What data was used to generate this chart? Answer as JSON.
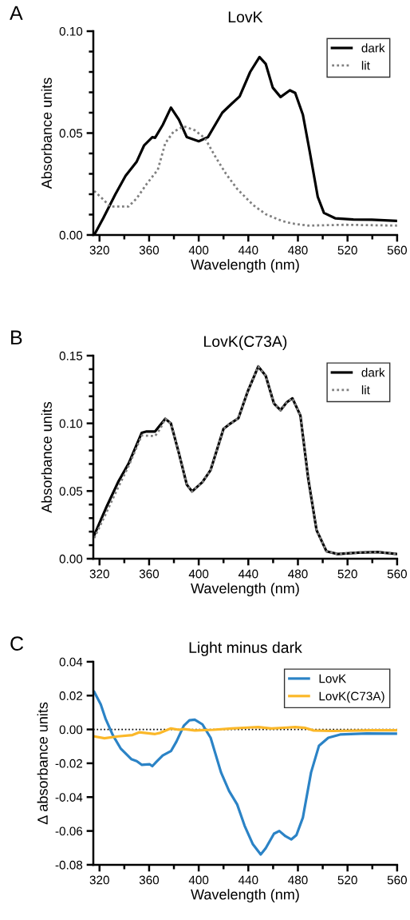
{
  "chart_data": [
    {
      "type": "line",
      "title": "LovK",
      "xlabel": "Wavelength (nm)",
      "ylabel": "Absorbance units",
      "annotations": [
        "A"
      ],
      "legend": "top right",
      "xlim": [
        315,
        560
      ],
      "xticks": [
        320,
        {
          "value": 340,
          "label": null
        },
        360,
        {
          "value": 380,
          "label": null
        },
        400,
        {
          "value": 420,
          "label": null
        },
        440,
        {
          "value": 460,
          "label": null
        },
        480,
        {
          "value": 500,
          "label": null
        },
        520,
        {
          "value": 540,
          "label": null
        },
        560
      ],
      "ylim": [
        0,
        0.1
      ],
      "yticks": [
        {
          "value": 0,
          "label": "0.00"
        },
        {
          "value": 0.01,
          "label": null
        },
        {
          "value": 0.02,
          "label": null
        },
        {
          "value": 0.03,
          "label": null
        },
        {
          "value": 0.04,
          "label": null
        },
        {
          "value": 0.05,
          "label": "0.05"
        },
        {
          "value": 0.06,
          "label": null
        },
        {
          "value": 0.07,
          "label": null
        },
        {
          "value": 0.08,
          "label": null
        },
        {
          "value": 0.09,
          "label": null
        },
        {
          "value": 0.1,
          "label": "0.10"
        }
      ],
      "series": [
        {
          "name": "dark",
          "color": "#000000",
          "line_style": "solid",
          "x": [
            315.7,
            323,
            332.8,
            341,
            350,
            356,
            362.6,
            364.8,
            371,
            377.6,
            384,
            390.4,
            400,
            407.4,
            419,
            426.6,
            433,
            441.5,
            449,
            454,
            459.7,
            466,
            473.5,
            477.8,
            484,
            489.5,
            496,
            501,
            510,
            524.7,
            539.6,
            560
          ],
          "values": [
            0,
            0.0082,
            0.02,
            0.029,
            0.036,
            0.044,
            0.048,
            0.0477,
            0.054,
            0.0625,
            0.0566,
            0.048,
            0.046,
            0.048,
            0.06,
            0.0644,
            0.068,
            0.08,
            0.0873,
            0.084,
            0.0723,
            0.0677,
            0.071,
            0.0697,
            0.059,
            0.041,
            0.0187,
            0.0108,
            0.0082,
            0.0076,
            0.0075,
            0.0069
          ]
        },
        {
          "name": "lit",
          "color": "#808080",
          "line_style": "dotted",
          "x": [
            315.7,
            322,
            328.5,
            343.5,
            350,
            358,
            367,
            373,
            379.7,
            388,
            396.8,
            405,
            413.8,
            422,
            431,
            443.7,
            454,
            467,
            475.6,
            488.4,
            518,
            560
          ],
          "values": [
            0.0216,
            0.018,
            0.014,
            0.014,
            0.018,
            0.025,
            0.032,
            0.045,
            0.0507,
            0.0533,
            0.0514,
            0.0475,
            0.038,
            0.03,
            0.0226,
            0.0148,
            0.0102,
            0.0069,
            0.0056,
            0.0046,
            0.005,
            0.0046
          ]
        }
      ]
    },
    {
      "type": "line",
      "title": "LovK(C73A)",
      "xlabel": "Wavelength (nm)",
      "ylabel": "Absorbance units",
      "annotations": [
        "B"
      ],
      "legend": "top right",
      "xlim": [
        315,
        560
      ],
      "xticks": [
        320,
        {
          "value": 340,
          "label": null
        },
        360,
        {
          "value": 380,
          "label": null
        },
        400,
        {
          "value": 420,
          "label": null
        },
        440,
        {
          "value": 460,
          "label": null
        },
        480,
        {
          "value": 500,
          "label": null
        },
        520,
        {
          "value": 540,
          "label": null
        },
        560
      ],
      "ylim": [
        0,
        0.15
      ],
      "yticks": [
        {
          "value": 0,
          "label": "0.00"
        },
        {
          "value": 0.01,
          "label": null
        },
        {
          "value": 0.02,
          "label": null
        },
        {
          "value": 0.03,
          "label": null
        },
        {
          "value": 0.04,
          "label": null
        },
        {
          "value": 0.05,
          "label": "0.05"
        },
        {
          "value": 0.06,
          "label": null
        },
        {
          "value": 0.07,
          "label": null
        },
        {
          "value": 0.08,
          "label": null
        },
        {
          "value": 0.09,
          "label": null
        },
        {
          "value": 0.1,
          "label": "0.10"
        },
        {
          "value": 0.11,
          "label": null
        },
        {
          "value": 0.12,
          "label": null
        },
        {
          "value": 0.13,
          "label": null
        },
        {
          "value": 0.14,
          "label": null
        },
        {
          "value": 0.15,
          "label": "0.15"
        }
      ],
      "series": [
        {
          "name": "dark",
          "color": "#000000",
          "line_style": "solid",
          "x": [
            315.7,
            326,
            335,
            343.5,
            354,
            358,
            364.8,
            373,
            377.6,
            384,
            390.4,
            394.6,
            403,
            409.6,
            420,
            425.6,
            432,
            439.4,
            448,
            454,
            460.7,
            466,
            471,
            475.6,
            482,
            488.4,
            495,
            503,
            512,
            529,
            544,
            560
          ],
          "values": [
            0.0173,
            0.039,
            0.0566,
            0.0704,
            0.093,
            0.094,
            0.094,
            0.1034,
            0.0999,
            0.078,
            0.0547,
            0.0497,
            0.0566,
            0.0655,
            0.096,
            0.0999,
            0.1038,
            0.1233,
            0.142,
            0.1352,
            0.1146,
            0.1097,
            0.1156,
            0.1185,
            0.1058,
            0.0586,
            0.0212,
            0.0055,
            0.0035,
            0.0045,
            0.0049,
            0.0035
          ]
        },
        {
          "name": "lit",
          "color": "#808080",
          "line_style": "dotted",
          "x": [
            315.7,
            326,
            335,
            343.5,
            354,
            364.8,
            369,
            373,
            377.6,
            384,
            390.4,
            394.6,
            403,
            409.6,
            420,
            425.6,
            432,
            439.4,
            448,
            454,
            460.7,
            466,
            471,
            475.6,
            482,
            488.4,
            495,
            503,
            512,
            529,
            544,
            560
          ],
          "values": [
            0.0153,
            0.035,
            0.0527,
            0.0685,
            0.091,
            0.0906,
            0.096,
            0.1034,
            0.0999,
            0.078,
            0.0547,
            0.0497,
            0.0566,
            0.0655,
            0.096,
            0.0999,
            0.1038,
            0.1233,
            0.142,
            0.1352,
            0.1146,
            0.1097,
            0.1156,
            0.1185,
            0.1058,
            0.0586,
            0.0212,
            0.0055,
            0.0035,
            0.0045,
            0.0049,
            0.0035
          ]
        }
      ]
    },
    {
      "type": "line",
      "title": "Light minus dark",
      "xlabel": "Wavelength (nm)",
      "ylabel": "Δ absorbance units",
      "annotations": [
        "C"
      ],
      "legend": "top right",
      "xlim": [
        315,
        560
      ],
      "xticks": [
        320,
        {
          "value": 340,
          "label": null
        },
        360,
        {
          "value": 380,
          "label": null
        },
        400,
        {
          "value": 420,
          "label": null
        },
        440,
        {
          "value": 460,
          "label": null
        },
        480,
        {
          "value": 500,
          "label": null
        },
        520,
        {
          "value": 540,
          "label": null
        },
        560
      ],
      "ylim": [
        -0.08,
        0.04
      ],
      "yticks": [
        {
          "value": -0.08,
          "label": "-0.08"
        },
        {
          "value": -0.06,
          "label": "-0.06"
        },
        {
          "value": -0.04,
          "label": "-0.04"
        },
        {
          "value": -0.02,
          "label": "-0.02"
        },
        {
          "value": 0,
          "label": "0.00"
        },
        {
          "value": 0.02,
          "label": "0.02"
        },
        {
          "value": 0.04,
          "label": "0.04"
        }
      ],
      "ref_lines": [
        {
          "axis": "y",
          "value": 0,
          "color": "#000000",
          "line_style": "dotted"
        }
      ],
      "series": [
        {
          "name": "LovK",
          "color": "#2b83c6",
          "line_style": "solid",
          "x": [
            315.7,
            321,
            325,
            330.7,
            337,
            345.6,
            350,
            354,
            360.5,
            362.6,
            366,
            371,
            377.6,
            382,
            388,
            392.5,
            396.8,
            403,
            409.6,
            418,
            424.5,
            431,
            437,
            443.7,
            450,
            454,
            460.7,
            465,
            470,
            474.6,
            478.8,
            484,
            490.6,
            497,
            504.5,
            514,
            535.5,
            560
          ],
          "values": [
            0.0222,
            0.0148,
            0.0061,
            -0.0033,
            -0.0112,
            -0.0175,
            -0.0187,
            -0.0209,
            -0.0206,
            -0.0217,
            -0.019,
            -0.0154,
            -0.0128,
            -0.0072,
            0.0022,
            0.0054,
            0.0058,
            0.003,
            -0.0049,
            -0.0254,
            -0.0364,
            -0.0443,
            -0.0569,
            -0.0679,
            -0.0739,
            -0.0702,
            -0.0616,
            -0.06,
            -0.0631,
            -0.065,
            -0.0624,
            -0.0521,
            -0.0254,
            -0.0096,
            -0.0049,
            -0.003,
            -0.0024,
            -0.0025
          ]
        },
        {
          "name": "LovK(C73A)",
          "color": "#fbb829",
          "line_style": "solid",
          "x": [
            315.7,
            324,
            335,
            346.6,
            352,
            360.5,
            364.8,
            369,
            377.6,
            384,
            388,
            396.8,
            411.7,
            426.6,
            439.4,
            448,
            458.6,
            471,
            477.8,
            486,
            492.7,
            507.6,
            539.6,
            560
          ],
          "values": [
            -0.0041,
            -0.0052,
            -0.0041,
            -0.0033,
            -0.0017,
            -0.0024,
            -0.0027,
            -0.002,
            0.0006,
            -0.0002,
            0.0002,
            -0.0006,
            -0.0002,
            0.0006,
            0.0011,
            0.0014,
            0.0006,
            0.0011,
            0.0014,
            0.0009,
            -0.0006,
            -0.0009,
            -0.0005,
            -0.0005
          ]
        }
      ]
    }
  ]
}
